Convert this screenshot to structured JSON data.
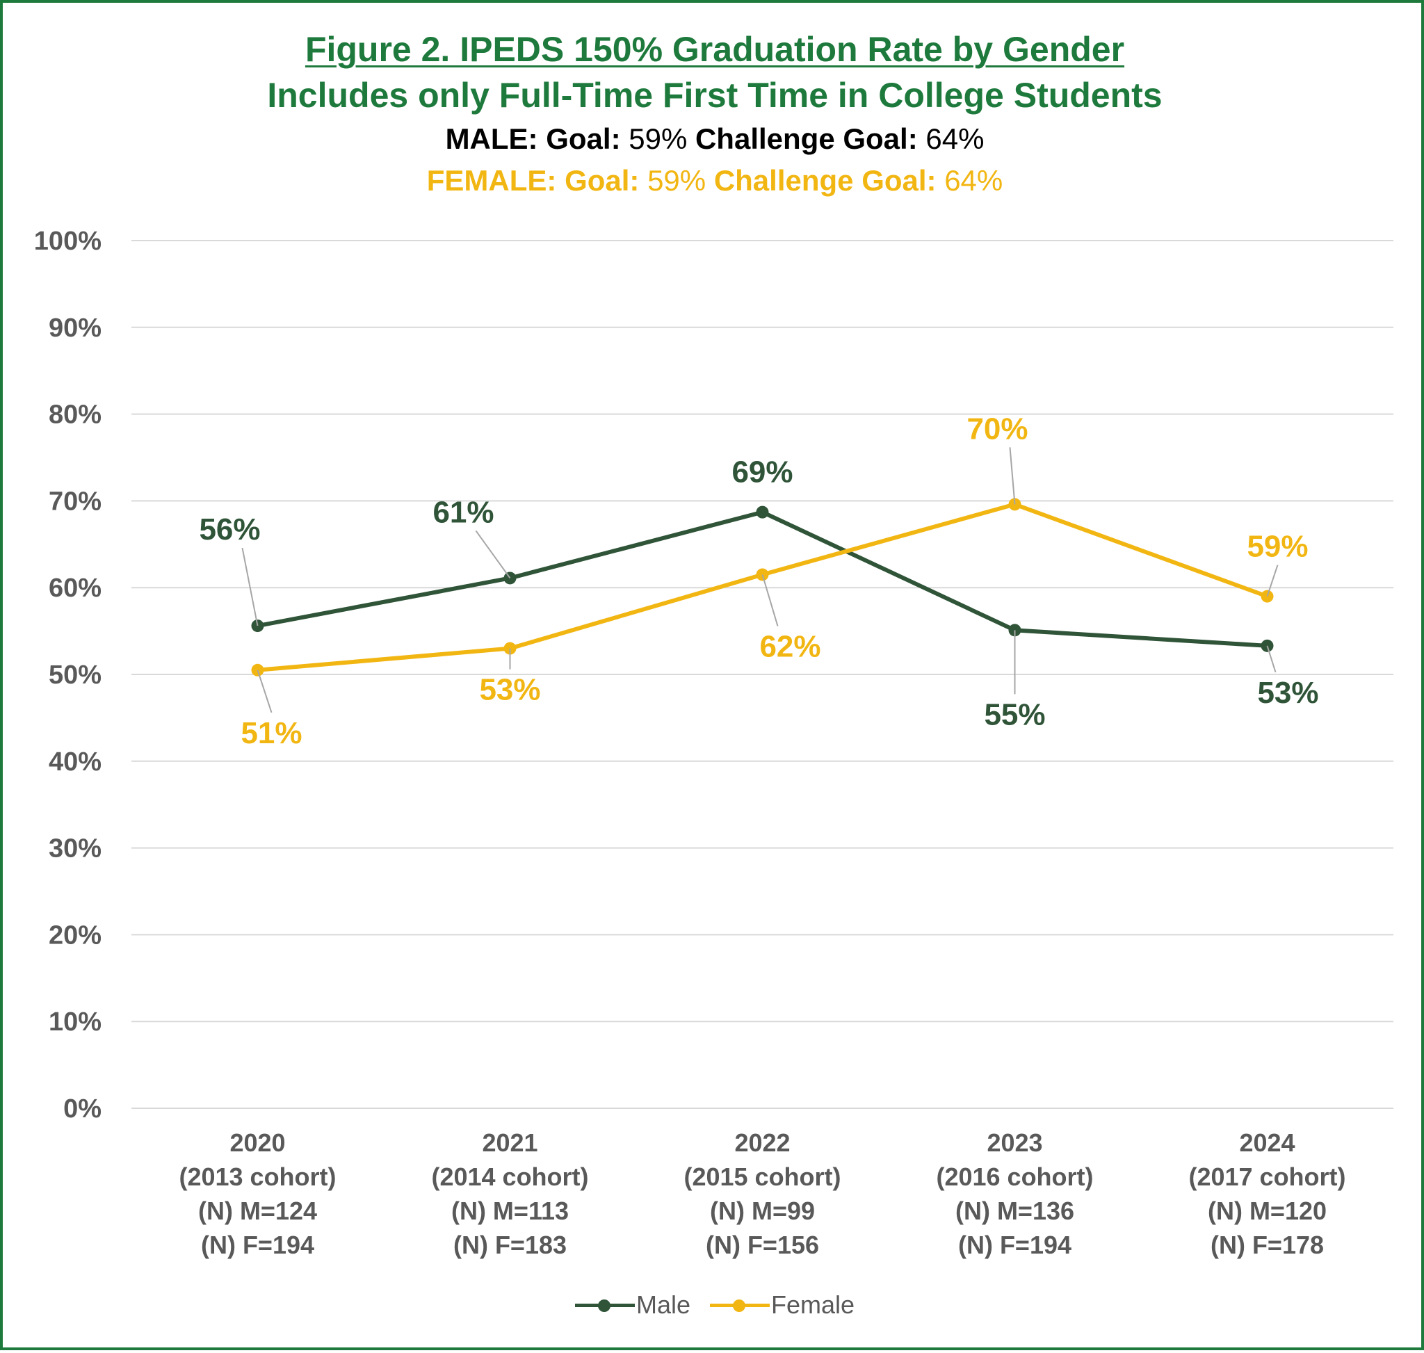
{
  "title": {
    "line1": "Figure 2. IPEDS 150% Graduation Rate by Gender",
    "line2": "Includes only Full-Time First Time in College Students",
    "male": {
      "label": "MALE:",
      "goal_label": "Goal:",
      "goal": "59%",
      "challenge_label": "Challenge Goal:",
      "challenge": "64%"
    },
    "female": {
      "label": "FEMALE:",
      "goal_label": "Goal:",
      "goal": "59%",
      "challenge_label": "Challenge Goal:",
      "challenge": "64%"
    }
  },
  "colors": {
    "male": "#2f5438",
    "female": "#f2b613",
    "title": "#1e7a3c",
    "grid": "#d9d9d9",
    "axis_text": "#595959"
  },
  "chart_data": {
    "type": "line",
    "ylim": [
      0,
      100
    ],
    "yticks": [
      "0%",
      "10%",
      "20%",
      "30%",
      "40%",
      "50%",
      "60%",
      "70%",
      "80%",
      "90%",
      "100%"
    ],
    "categories": [
      [
        "2020",
        "(2013 cohort)",
        "(N) M=124",
        "(N) F=194"
      ],
      [
        "2021",
        "(2014 cohort)",
        "(N) M=113",
        "(N) F=183"
      ],
      [
        "2022",
        "(2015 cohort)",
        "(N) M=99",
        "(N) F=156"
      ],
      [
        "2023",
        "(2016 cohort)",
        "(N) M=136",
        "(N) F=194"
      ],
      [
        "2024",
        "(2017 cohort)",
        "(N) M=120",
        "(N) F=178"
      ]
    ],
    "series": [
      {
        "name": "Male",
        "color": "#2f5438",
        "values": [
          55.6,
          61.1,
          68.7,
          55.1,
          53.3
        ],
        "labels": [
          "56%",
          "61%",
          "69%",
          "55%",
          "53%"
        ]
      },
      {
        "name": "Female",
        "color": "#f2b613",
        "values": [
          50.5,
          53.0,
          61.5,
          69.6,
          59.0
        ],
        "labels": [
          "51%",
          "53%",
          "62%",
          "70%",
          "59%"
        ]
      }
    ],
    "legend": [
      "Male",
      "Female"
    ],
    "legend_position": "bottom"
  }
}
